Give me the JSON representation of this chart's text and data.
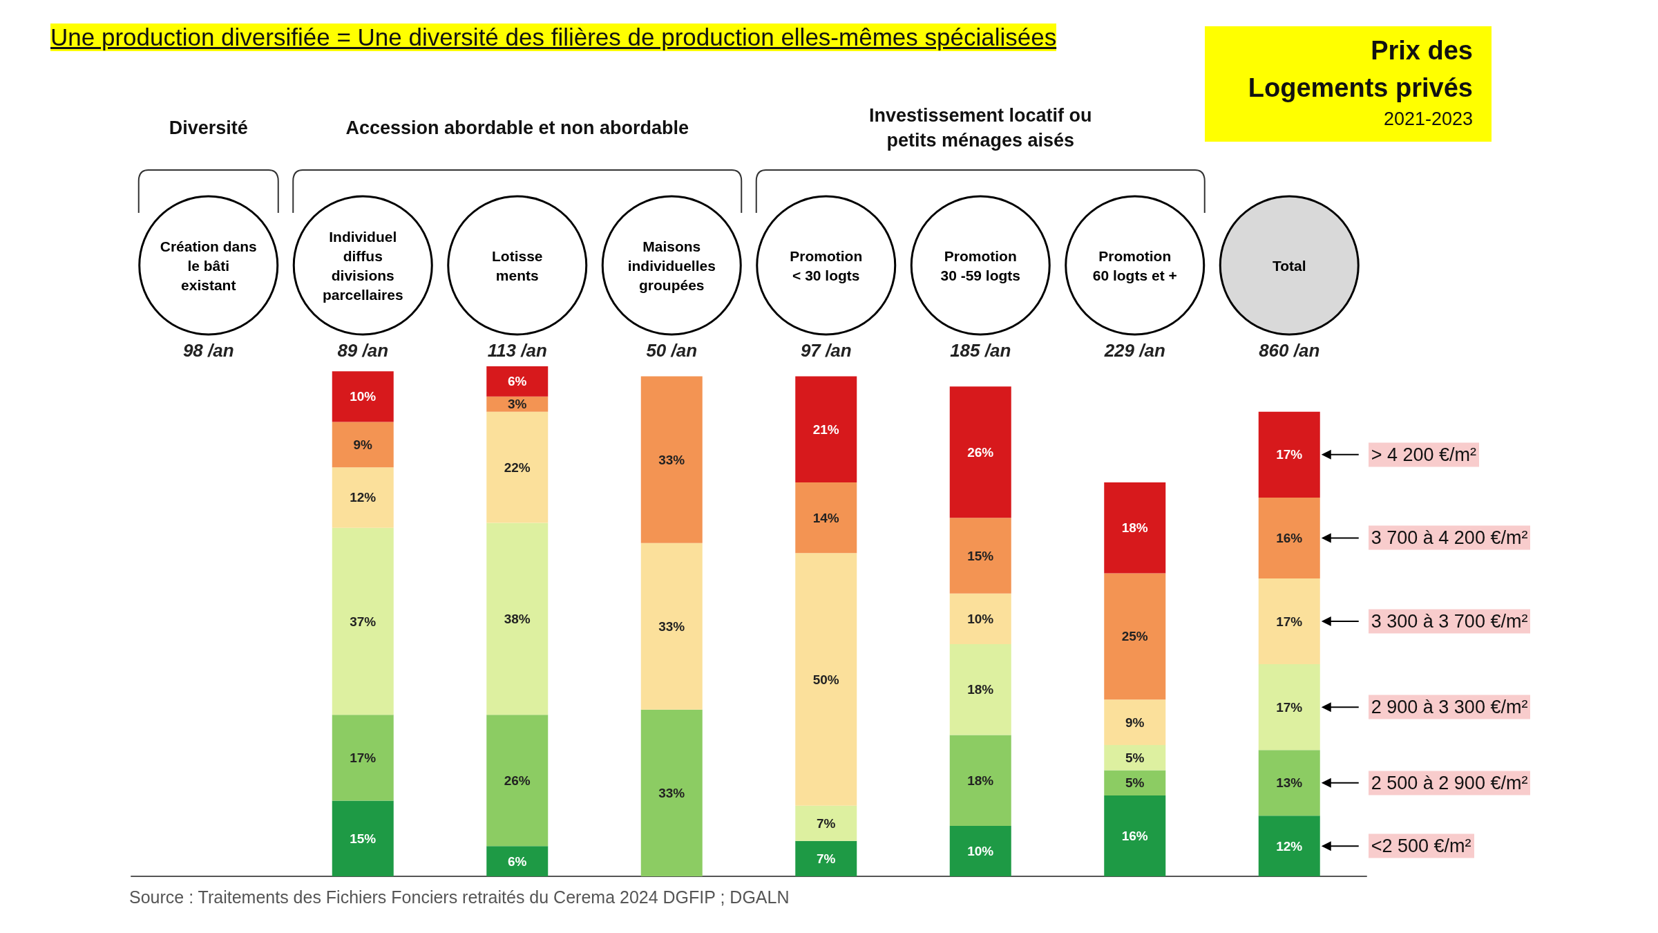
{
  "chart_data": {
    "type": "bar",
    "title": "Une production diversifiée = Une diversité des filières de production elles-mêmes spécialisées",
    "subtitle": "Prix des\nLogements privés",
    "categories": [
      "Création dans\nle bâti\nexistant",
      "Individuel\ndiffus\ndivisions\nparcellaires",
      "Lotisse\nments",
      "Maisons\nindividuelles\ngroupées",
      "Promotion\n< 30 logts",
      "Promotion\n30 -59 logts",
      "Promotion\n60 logts et +",
      "Total"
    ],
    "stacked": true,
    "legend": "right",
    "tick_labels": "x",
    "series": [
      {
        "name": "<2 500 €/m²",
        "color": "#1e9a45",
        "values": [
          null,
          15,
          6,
          null,
          7,
          10,
          16,
          12
        ],
        "value_labels": [
          null,
          "15%",
          "6%",
          null,
          "7%",
          "10%",
          "16%",
          "12%"
        ]
      },
      {
        "name": "2 500 à 2 900 €/m²",
        "color": "#8ccc63",
        "values": [
          null,
          17,
          26,
          33,
          null,
          18,
          5,
          13
        ],
        "value_labels": [
          null,
          "17%",
          "26%",
          "33%",
          null,
          "18%",
          "5%",
          "13%"
        ]
      },
      {
        "name": "2 900 à 3 300 €/m²",
        "color": "#ddf0a0",
        "values": [
          null,
          37,
          38,
          null,
          7,
          18,
          5,
          17
        ],
        "value_labels": [
          null,
          "37%",
          "38%",
          null,
          "7%",
          "18%",
          "5%",
          "17%"
        ]
      },
      {
        "name": "3 300 à 3 700 €/m²",
        "color": "#fbe09b",
        "values": [
          null,
          12,
          22,
          33,
          50,
          10,
          9,
          17
        ],
        "value_labels": [
          null,
          "12%",
          "22%",
          "33%",
          "50%",
          "10%",
          "9%",
          "17%"
        ]
      },
      {
        "name": "3 700 à 4 200 €/m²",
        "color": "#f39453",
        "values": [
          null,
          9,
          3,
          33,
          14,
          15,
          25,
          16
        ],
        "value_labels": [
          null,
          "9%",
          "3%",
          "33%",
          "14%",
          "15%",
          "25%",
          "16%"
        ]
      },
      {
        "name": "> 4 200 €/m²",
        "color": "#d7191c",
        "values": [
          null,
          10,
          6,
          null,
          21,
          26,
          18,
          17
        ],
        "value_labels": [
          null,
          "10%",
          "6%",
          null,
          "21%",
          "26%",
          "18%",
          "17%"
        ]
      }
    ],
    "annotations": [
      "2021-2023",
      "Diversité",
      "Accession abordable et non abordable",
      "Investissement locatif ou\npetits ménages aisés",
      "98 /an",
      "89 /an",
      "113 /an",
      "50 /an",
      "97 /an",
      "185 /an",
      "229 /an",
      "860 /an",
      "Source : Traitements des Fichiers Fonciers retraités du Cerema 2024 DGFIP ; DGALN"
    ]
  }
}
